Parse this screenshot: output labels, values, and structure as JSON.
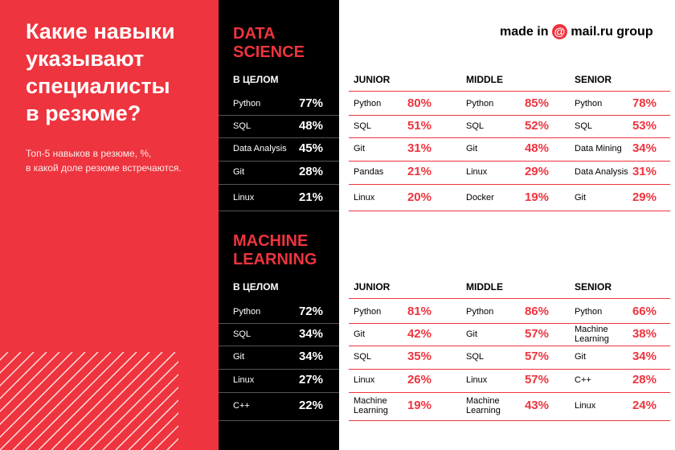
{
  "header": {
    "title_lines": [
      "Какие навыки",
      "указывают",
      "специалисты",
      "в резюме?"
    ],
    "subtitle_lines": [
      "Топ-5 навыков в резюме, %,",
      "в какой доле резюме встречаются."
    ],
    "brand_prefix": "made in",
    "brand_mark": "@",
    "brand": "mail.ru group"
  },
  "sections": [
    {
      "title_lines": [
        "DATA",
        "SCIENCE"
      ],
      "groups": [
        {
          "name": "В ЦЕЛОМ",
          "rows": [
            [
              "Python",
              "77%"
            ],
            [
              "SQL",
              "48%"
            ],
            [
              "Data Analysis",
              "45%"
            ],
            [
              "Git",
              "28%"
            ],
            [
              "Linux",
              "21%"
            ]
          ]
        },
        {
          "name": "JUNIOR",
          "rows": [
            [
              "Python",
              "80%"
            ],
            [
              "SQL",
              "51%"
            ],
            [
              "Git",
              "31%"
            ],
            [
              "Pandas",
              "21%"
            ],
            [
              "Linux",
              "20%"
            ]
          ]
        },
        {
          "name": "MIDDLE",
          "rows": [
            [
              "Python",
              "85%"
            ],
            [
              "SQL",
              "52%"
            ],
            [
              "Git",
              "48%"
            ],
            [
              "Linux",
              "29%"
            ],
            [
              "Docker",
              "19%"
            ]
          ]
        },
        {
          "name": "SENIOR",
          "rows": [
            [
              "Python",
              "78%"
            ],
            [
              "SQL",
              "53%"
            ],
            [
              "Data Mining",
              "34%"
            ],
            [
              "Data Analysis",
              "31%"
            ],
            [
              "Git",
              "29%"
            ]
          ]
        }
      ]
    },
    {
      "title_lines": [
        "MACHINE",
        "LEARNING"
      ],
      "groups": [
        {
          "name": "В ЦЕЛОМ",
          "rows": [
            [
              "Python",
              "72%"
            ],
            [
              "SQL",
              "34%"
            ],
            [
              "Git",
              "34%"
            ],
            [
              "Linux",
              "27%"
            ],
            [
              "C++",
              "22%"
            ]
          ]
        },
        {
          "name": "JUNIOR",
          "rows": [
            [
              "Python",
              "81%"
            ],
            [
              "Git",
              "42%"
            ],
            [
              "SQL",
              "35%"
            ],
            [
              "Linux",
              "26%"
            ],
            [
              "Machine Learning",
              "19%"
            ]
          ]
        },
        {
          "name": "MIDDLE",
          "rows": [
            [
              "Python",
              "86%"
            ],
            [
              "Git",
              "57%"
            ],
            [
              "SQL",
              "57%"
            ],
            [
              "Linux",
              "57%"
            ],
            [
              "Machine Learning",
              "43%"
            ]
          ]
        },
        {
          "name": "SENIOR",
          "rows": [
            [
              "Python",
              "66%"
            ],
            [
              "Machine Learning",
              "38%"
            ],
            [
              "Git",
              "34%"
            ],
            [
              "C++",
              "28%"
            ],
            [
              "Linux",
              "24%"
            ]
          ]
        }
      ]
    }
  ]
}
